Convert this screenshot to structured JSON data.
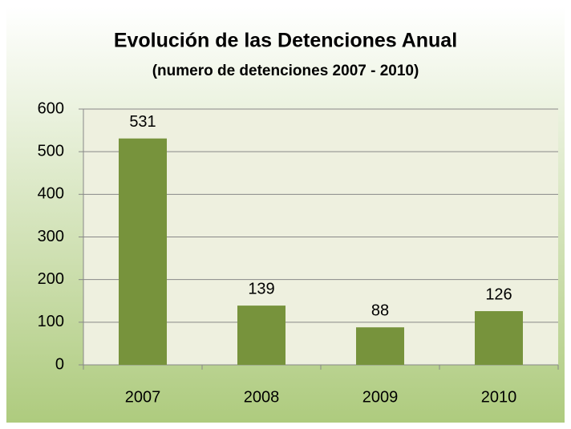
{
  "chart_data": {
    "type": "bar",
    "title": "Evolución de las Detenciones Anual",
    "subtitle": "(numero de detenciones 2007 - 2010)",
    "categories": [
      "2007",
      "2008",
      "2009",
      "2010"
    ],
    "values": [
      531,
      139,
      88,
      126
    ],
    "color": "#77933c",
    "ylim": [
      0,
      600
    ],
    "yticks": [
      0,
      100,
      200,
      300,
      400,
      500,
      600
    ],
    "grid": true
  }
}
